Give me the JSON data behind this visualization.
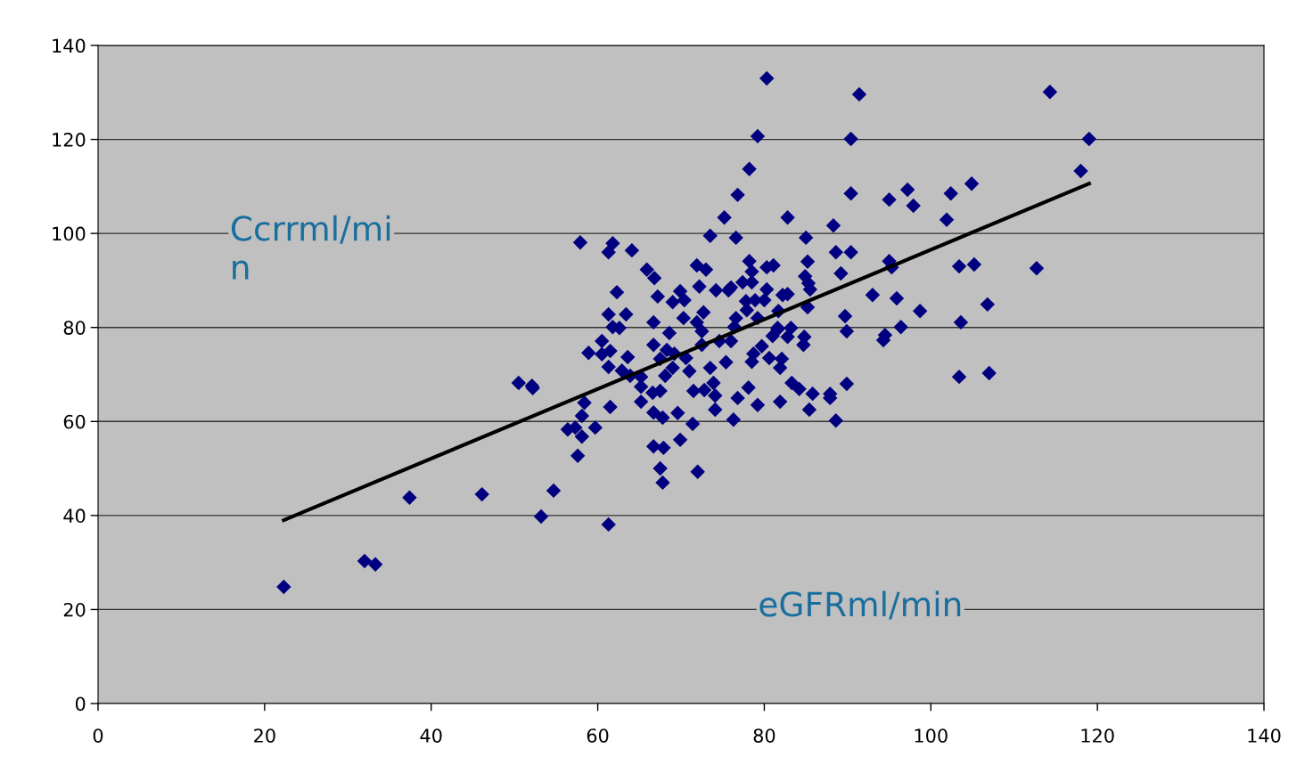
{
  "chart_data": {
    "type": "scatter",
    "xlabel": "eGFRml/min",
    "ylabel": "Ccrrml/mi\nn",
    "xlim": [
      0,
      140
    ],
    "xticks": [
      0,
      20,
      40,
      60,
      80,
      100,
      120,
      140
    ],
    "ylim": [
      0,
      140
    ],
    "yticks": [
      0,
      20,
      40,
      60,
      80,
      100,
      120,
      140
    ],
    "grid": "y",
    "marker": "diamond",
    "series": [
      {
        "color": "#000080",
        "x": [
          22.3,
          32.0,
          33.3,
          37.4,
          46.1,
          50.5,
          52.1,
          52.2,
          53.2,
          54.7,
          56.4,
          57.3,
          58.1,
          59.7,
          57.6,
          58.4,
          58.1,
          61.5,
          61.3,
          57.9,
          61.8,
          61.3,
          64.1,
          65.9,
          66.8,
          62.3,
          61.3,
          63.4,
          61.8,
          62.6,
          66.7,
          60.5,
          58.9,
          60.5,
          61.5,
          63.6,
          61.3,
          62.9,
          63.9,
          65.2,
          65.2,
          66.6,
          65.2,
          66.7,
          66.7,
          73.5,
          76.6,
          71.9,
          73.0,
          78.2,
          78.5,
          80.3,
          81.1,
          72.2,
          74.2,
          75.7,
          76.0,
          77.4,
          78.5,
          80.3,
          67.2,
          69.9,
          69.0,
          70.4,
          77.8,
          78.9,
          80.0,
          77.9,
          82.2,
          72.7,
          70.3,
          71.9,
          72.5,
          68.6,
          76.6,
          76.4,
          79.2,
          81.6,
          81.0,
          68.3,
          69.2,
          72.5,
          74.6,
          76.0,
          70.6,
          79.7,
          78.7,
          78.5,
          80.6,
          81.9,
          67.5,
          69.0,
          68.1,
          71.0,
          73.5,
          75.4,
          67.5,
          71.5,
          72.8,
          73.9,
          74.1,
          76.8,
          78.1,
          79.2,
          81.9,
          67.8,
          69.6,
          71.4,
          74.1,
          76.3,
          66.7,
          67.9,
          69.9,
          67.5,
          67.8,
          72.0,
          88.3,
          85.0,
          88.6,
          90.4,
          85.2,
          84.9,
          85.3,
          85.5,
          89.2,
          82.8,
          95.0,
          95.3,
          93.0,
          95.9,
          98.7,
          85.2,
          89.7,
          89.9,
          96.4,
          94.5,
          94.3,
          81.7,
          81.6,
          83.2,
          82.8,
          84.8,
          84.7,
          82.1,
          83.3,
          84.2,
          85.8,
          87.9,
          87.9,
          89.9,
          85.4,
          88.6,
          80.3,
          91.4,
          79.2,
          90.4,
          78.2,
          76.8,
          75.2,
          82.8,
          90.4,
          95.0,
          97.2,
          97.9,
          114.3,
          119.0,
          118.0,
          104.9,
          102.4,
          101.9,
          103.4,
          105.2,
          112.7,
          106.8,
          103.6,
          103.4,
          107.0
        ],
        "values": [
          24.8,
          30.3,
          29.6,
          43.8,
          44.5,
          68.2,
          67.6,
          67.1,
          39.8,
          45.3,
          58.3,
          58.7,
          56.8,
          58.7,
          52.7,
          64.0,
          61.2,
          63.1,
          38.1,
          98.1,
          97.9,
          96.0,
          96.4,
          92.3,
          90.5,
          87.5,
          82.8,
          82.8,
          80.1,
          79.9,
          81.1,
          77.1,
          74.6,
          74.3,
          75.0,
          73.7,
          71.6,
          70.8,
          69.7,
          69.5,
          67.4,
          66.1,
          64.2,
          76.3,
          61.9,
          99.5,
          99.1,
          93.2,
          92.3,
          94.1,
          91.9,
          92.8,
          93.2,
          88.7,
          87.9,
          87.9,
          88.5,
          89.6,
          89.6,
          88.1,
          86.6,
          87.7,
          85.4,
          85.8,
          85.6,
          85.8,
          85.8,
          83.7,
          86.9,
          83.2,
          82.0,
          81.1,
          79.2,
          78.8,
          82.0,
          80.1,
          82.0,
          79.6,
          78.2,
          75.2,
          74.4,
          76.3,
          77.1,
          77.1,
          73.5,
          76.0,
          74.4,
          72.7,
          73.5,
          71.4,
          73.3,
          71.4,
          69.7,
          70.7,
          71.4,
          72.6,
          66.5,
          66.5,
          66.7,
          68.2,
          65.5,
          65.0,
          67.2,
          63.5,
          64.2,
          60.8,
          61.8,
          59.5,
          62.5,
          60.4,
          54.7,
          54.4,
          56.1,
          50.0,
          47.0,
          49.3,
          101.7,
          99.1,
          96.0,
          96.0,
          94.0,
          90.9,
          89.4,
          88.1,
          91.5,
          87.1,
          94.1,
          92.8,
          86.9,
          86.2,
          83.5,
          84.3,
          82.4,
          79.2,
          80.1,
          78.4,
          77.3,
          83.5,
          79.9,
          79.9,
          78.0,
          78.0,
          76.3,
          73.3,
          68.2,
          66.9,
          65.9,
          65.9,
          65.0,
          68.0,
          62.5,
          60.2,
          133.0,
          129.6,
          120.7,
          120.1,
          113.7,
          108.2,
          103.4,
          103.4,
          108.5,
          107.2,
          109.3,
          105.9,
          130.1,
          120.1,
          113.3,
          110.6,
          108.5,
          102.9,
          93.0,
          93.4,
          92.6,
          84.9,
          81.1,
          69.5,
          70.3
        ]
      },
      {
        "type": "line",
        "color": "#000000",
        "marker": "none",
        "x": [
          22.3,
          119.0
        ],
        "values": [
          39.0,
          110.6
        ]
      }
    ]
  }
}
